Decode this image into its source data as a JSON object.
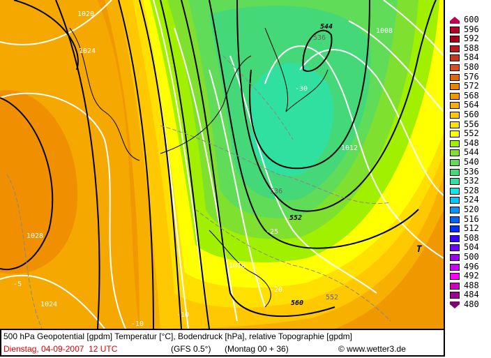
{
  "map": {
    "labels": [
      "1020",
      "1024",
      "1028",
      "1024",
      "-5",
      "-10",
      "-10",
      "544",
      "536",
      "-30",
      "1008",
      "1012",
      "536",
      "552",
      "-25",
      "1016",
      "-20",
      "560",
      "552",
      "T",
      "536",
      "540"
    ]
  },
  "legend": {
    "values": [
      "600",
      "596",
      "592",
      "588",
      "584",
      "580",
      "576",
      "572",
      "568",
      "564",
      "560",
      "556",
      "552",
      "548",
      "544",
      "540",
      "536",
      "532",
      "528",
      "524",
      "520",
      "516",
      "512",
      "508",
      "504",
      "500",
      "496",
      "492",
      "488",
      "484",
      "480"
    ],
    "colors": [
      "#c0004c",
      "#b8002a",
      "#a80018",
      "#b81c1c",
      "#c83820",
      "#d85020",
      "#e06808",
      "#e88400",
      "#f09800",
      "#f8b000",
      "#ffc800",
      "#ffe000",
      "#ffff00",
      "#a0f000",
      "#80e030",
      "#60dc58",
      "#44d878",
      "#30e0a0",
      "#10e8e8",
      "#00c8ff",
      "#0098ff",
      "#0064ff",
      "#0030ff",
      "#3c00ff",
      "#7000ff",
      "#a000f0",
      "#d000f8",
      "#ff00ff",
      "#d000c0",
      "#a00098",
      "#800070"
    ]
  },
  "caption": {
    "line1": "500 hPa Geopotential [gpdm] Temperatur [°C], Bodendruck [hPa], relative Topographie [gpdm]",
    "date": "Dienstag, 04-09-2007  12 UTC",
    "model": "(GFS 0.5°)",
    "run": "(Montag 00 + 36)",
    "copyright": "© www.wetter3.de"
  }
}
